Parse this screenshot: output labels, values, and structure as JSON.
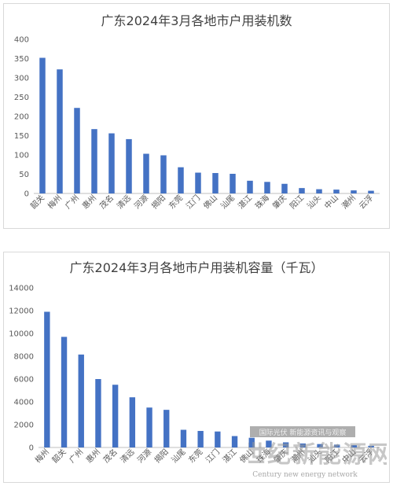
{
  "chart_data": [
    {
      "type": "bar",
      "title": "广东2024年3月各地市户用装机数",
      "categories": [
        "韶关",
        "梅州",
        "广州",
        "惠州",
        "茂名",
        "清远",
        "河源",
        "揭阳",
        "东莞",
        "江门",
        "佛山",
        "汕尾",
        "湛江",
        "珠海",
        "肇庆",
        "阳江",
        "汕头",
        "中山",
        "潮州",
        "云浮"
      ],
      "values": [
        352,
        322,
        222,
        167,
        156,
        141,
        103,
        99,
        68,
        54,
        53,
        51,
        33,
        30,
        25,
        14,
        11,
        10,
        8,
        7
      ],
      "ylim": [
        0,
        400
      ],
      "yticks": [
        0,
        50,
        100,
        150,
        200,
        250,
        300,
        350,
        400
      ],
      "color": "#4472C4",
      "grid": false,
      "legend": "none"
    },
    {
      "type": "bar",
      "title": "广东2024年3月各地市户用装机容量（千瓦）",
      "categories": [
        "梅州",
        "韶关",
        "广州",
        "惠州",
        "茂名",
        "清远",
        "河源",
        "揭阳",
        "汕尾",
        "东莞",
        "江门",
        "湛江",
        "佛山",
        "珠海",
        "肇庆",
        "潮州",
        "汕头",
        "阳江",
        "中山",
        "云浮"
      ],
      "values": [
        11900,
        9700,
        8150,
        6000,
        5500,
        4400,
        3500,
        3300,
        1550,
        1450,
        1400,
        1000,
        850,
        600,
        450,
        350,
        300,
        250,
        200,
        150
      ],
      "ylim": [
        0,
        14000
      ],
      "yticks": [
        0,
        2000,
        4000,
        6000,
        8000,
        10000,
        12000,
        14000
      ],
      "color": "#4472C4",
      "grid": false,
      "legend": "none"
    }
  ],
  "watermark": {
    "line1": "国际光伏 新能源资讯与观察",
    "line2": "世纪新能源网",
    "line3": "Century new energy network"
  }
}
